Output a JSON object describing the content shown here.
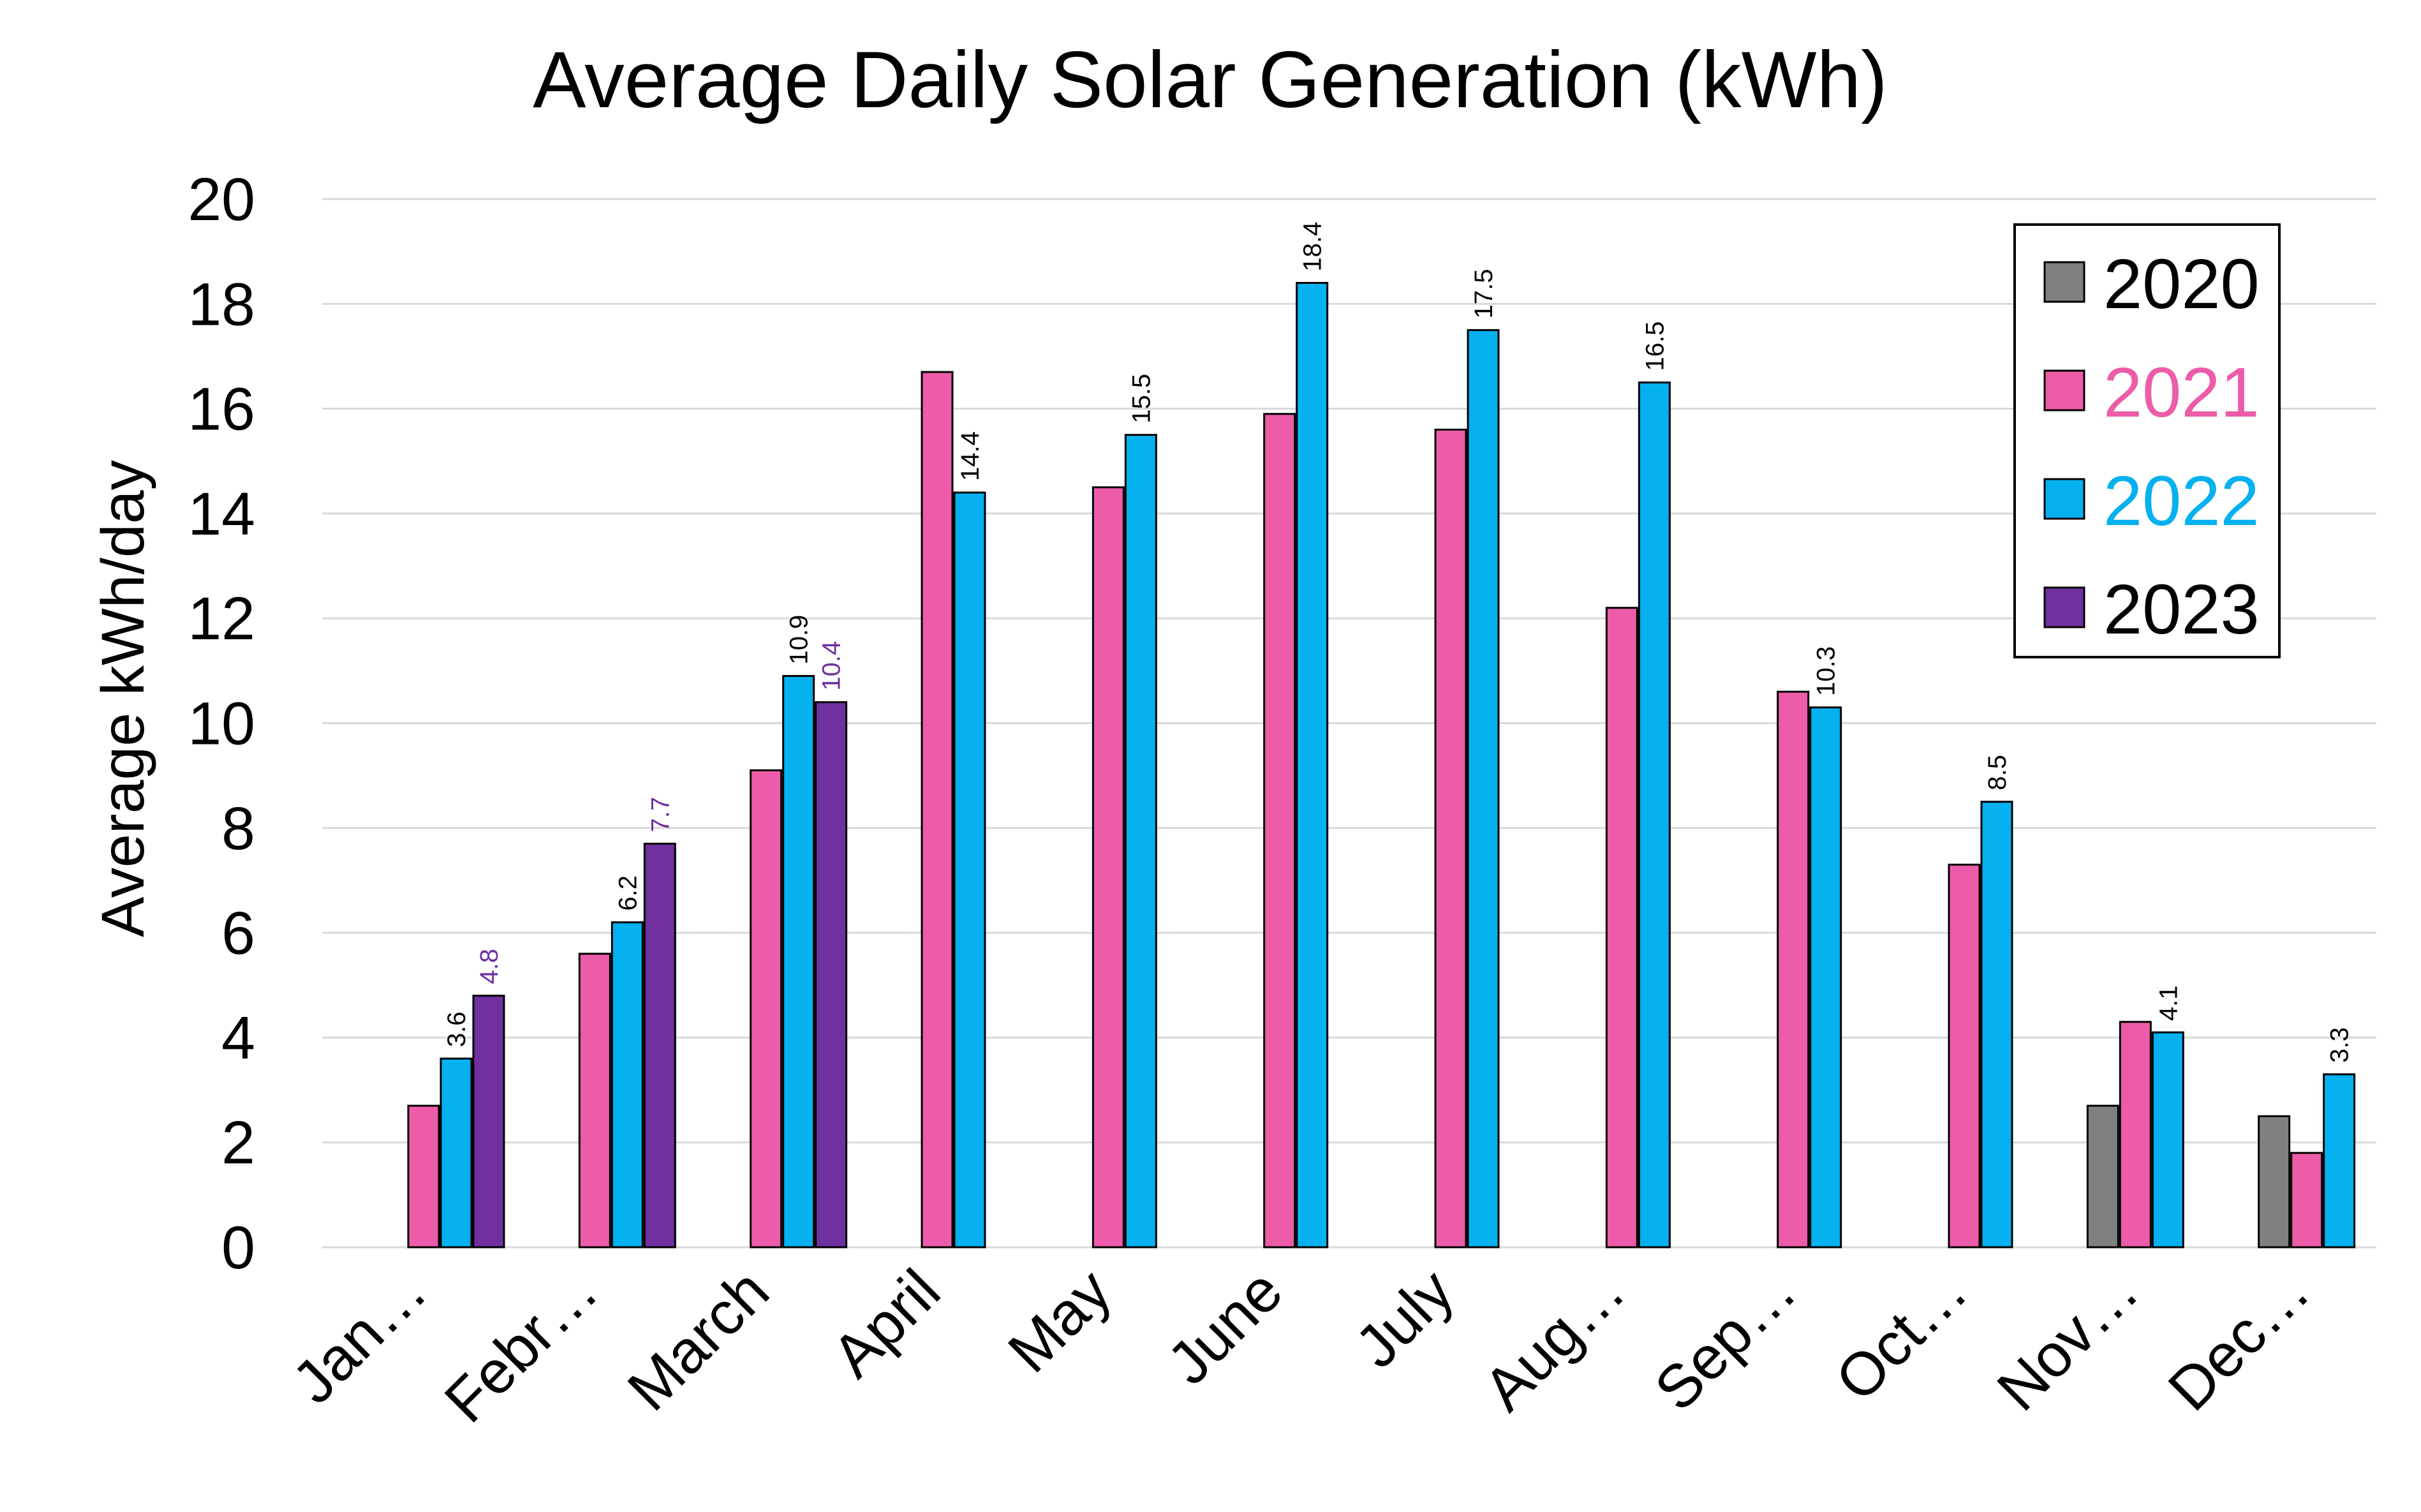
{
  "chart_data": {
    "type": "bar",
    "title": "Average Daily Solar Generation (kWh)",
    "xlabel": "",
    "ylabel": "Average kWh/day",
    "ylim": [
      0,
      20
    ],
    "yticks": [
      "0",
      "2",
      "4",
      "6",
      "8",
      "10",
      "12",
      "14",
      "16",
      "18",
      "20"
    ],
    "grid": true,
    "legend_position": "top-right",
    "categories": [
      "Jan…",
      "Febr…",
      "March",
      "April",
      "May",
      "June",
      "July",
      "Aug…",
      "Sep…",
      "Oct…",
      "Nov…",
      "Dec…"
    ],
    "series": [
      {
        "name": "2020",
        "color": "#808080",
        "label_color": "#000000",
        "values": [
          null,
          null,
          null,
          null,
          null,
          null,
          null,
          null,
          null,
          null,
          2.7,
          2.5
        ],
        "data_labels": [
          null,
          null,
          null,
          null,
          null,
          null,
          null,
          null,
          null,
          null,
          null,
          null
        ]
      },
      {
        "name": "2021",
        "color": "#ec5ca8",
        "label_color": "#000000",
        "values": [
          2.7,
          5.6,
          9.1,
          16.7,
          14.5,
          15.9,
          15.6,
          12.2,
          10.6,
          7.3,
          4.3,
          1.8
        ],
        "data_labels": [
          null,
          null,
          null,
          null,
          null,
          null,
          null,
          null,
          null,
          null,
          null,
          null
        ]
      },
      {
        "name": "2022",
        "color": "#05b0ef",
        "label_color": "#000000",
        "values": [
          3.6,
          6.2,
          10.9,
          14.4,
          15.5,
          18.4,
          17.5,
          16.5,
          10.3,
          8.5,
          4.1,
          3.3
        ],
        "data_labels": [
          "3.6",
          "6.2",
          "10.9",
          "14.4",
          "15.5",
          "18.4",
          "17.5",
          "16.5",
          "10.3",
          "8.5",
          "4.1",
          "3.3"
        ]
      },
      {
        "name": "2023",
        "color": "#7030a0",
        "label_color": "#7030a0",
        "values": [
          4.8,
          7.7,
          10.4,
          null,
          null,
          null,
          null,
          null,
          null,
          null,
          null,
          null
        ],
        "data_labels": [
          "4.8",
          "7.7",
          "10.4",
          null,
          null,
          null,
          null,
          null,
          null,
          null,
          null,
          null
        ]
      }
    ],
    "legend": [
      {
        "name": "2020",
        "text_color": "#000000"
      },
      {
        "name": "2021",
        "text_color": "#ec5ca8"
      },
      {
        "name": "2022",
        "text_color": "#05b0ef"
      },
      {
        "name": "2023",
        "text_color": "#000000"
      }
    ]
  }
}
